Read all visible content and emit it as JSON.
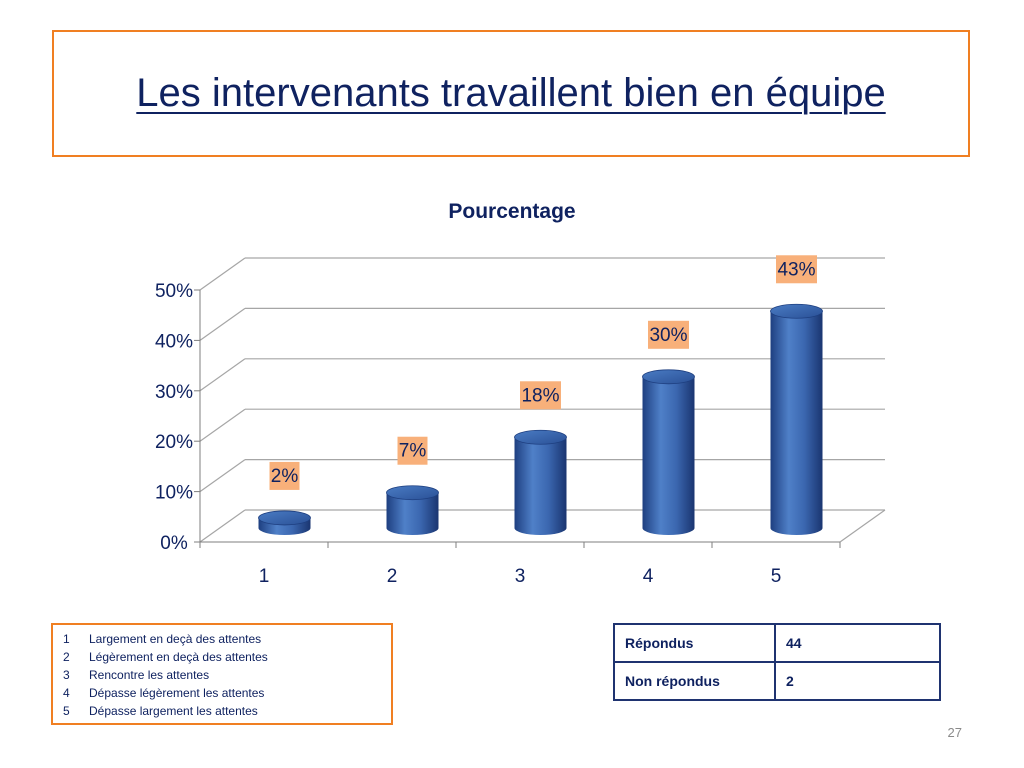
{
  "slide": {
    "title": "Les intervenants travaillent bien en équipe",
    "page_number": "27"
  },
  "chart_data": {
    "type": "bar",
    "title": "Pourcentage",
    "categories": [
      "1",
      "2",
      "3",
      "4",
      "5"
    ],
    "values": [
      2,
      7,
      18,
      30,
      43
    ],
    "data_labels": [
      "2%",
      "7%",
      "18%",
      "30%",
      "43%"
    ],
    "y_ticks": [
      "0%",
      "10%",
      "20%",
      "30%",
      "40%",
      "50%"
    ],
    "ylim": [
      0,
      50
    ],
    "grid": true,
    "style": "3d-cylinder",
    "colors": {
      "bar": "#3b67b0",
      "label_bg": "#f8b07a",
      "grid": "#a6a6a6",
      "text": "#0f2260"
    }
  },
  "legend": {
    "items": [
      {
        "num": "1",
        "text": "Largement en deçà des attentes"
      },
      {
        "num": "2",
        "text": "Légèrement en deçà des attentes"
      },
      {
        "num": "3",
        "text": "Rencontre les attentes"
      },
      {
        "num": "4",
        "text": "Dépasse légèrement les attentes"
      },
      {
        "num": "5",
        "text": "Dépasse largement les attentes"
      }
    ]
  },
  "responses": [
    {
      "label": "Répondus",
      "value": "44"
    },
    {
      "label": "Non répondus",
      "value": "2"
    }
  ]
}
